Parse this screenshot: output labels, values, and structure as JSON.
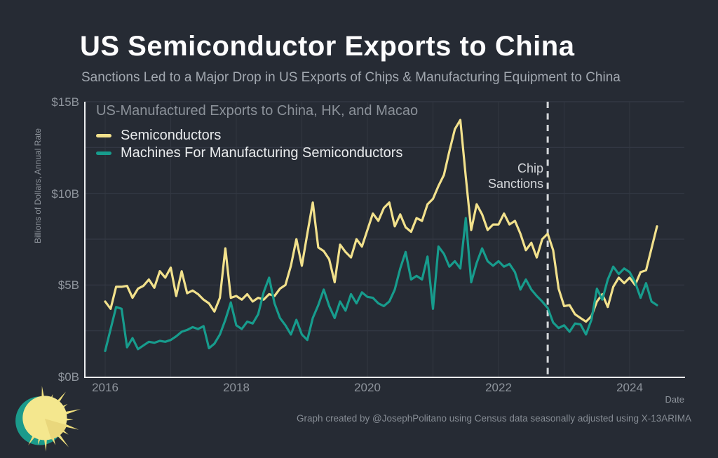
{
  "header": {
    "title": "US Semiconductor Exports to China",
    "subtitle": "Sanctions Led to a Major Drop in US Exports of Chips & Manufacturing Equipment to China"
  },
  "chart_data": {
    "type": "line",
    "inner_title": "US-Manufactured Exports to China, HK, and Macao",
    "ylabel": "Billions of Dollars, Annual Rate",
    "xlabel": "Date",
    "ylim": [
      0,
      15
    ],
    "grid": true,
    "legend_position": "top-left-inside",
    "x_unit": "month",
    "x_start": "2016-01",
    "x_end": "2024-06",
    "y_ticks": [
      {
        "label": "$0B",
        "value": 0
      },
      {
        "label": "$5B",
        "value": 5
      },
      {
        "label": "$10B",
        "value": 10
      },
      {
        "label": "$15B",
        "value": 15
      }
    ],
    "x_ticks": [
      {
        "label": "2016",
        "year_offset": 0
      },
      {
        "label": "2018",
        "year_offset": 2
      },
      {
        "label": "2020",
        "year_offset": 4
      },
      {
        "label": "2022",
        "year_offset": 6
      },
      {
        "label": "2024",
        "year_offset": 8
      }
    ],
    "series": [
      {
        "name": "Semiconductors",
        "color": "#f2e18c",
        "values": [
          4.1,
          3.7,
          4.9,
          4.9,
          4.95,
          4.3,
          4.8,
          4.95,
          5.3,
          4.85,
          5.75,
          5.4,
          5.95,
          4.4,
          5.75,
          4.55,
          4.7,
          4.5,
          4.2,
          4.0,
          3.55,
          4.3,
          7.0,
          4.3,
          4.4,
          4.2,
          4.5,
          4.1,
          4.3,
          4.2,
          4.5,
          4.4,
          4.8,
          5.0,
          6.05,
          7.5,
          6.05,
          7.8,
          9.5,
          7.05,
          6.85,
          6.4,
          5.15,
          7.2,
          6.8,
          6.5,
          7.5,
          7.1,
          8.0,
          8.9,
          8.5,
          9.2,
          9.5,
          8.2,
          8.85,
          8.15,
          7.9,
          8.65,
          8.5,
          9.4,
          9.7,
          10.4,
          11.0,
          12.3,
          13.5,
          14.0,
          10.9,
          8.0,
          9.4,
          8.85,
          8.0,
          8.3,
          8.3,
          8.9,
          8.3,
          8.5,
          7.8,
          6.9,
          7.3,
          6.5,
          7.5,
          7.8,
          6.9,
          4.8,
          3.85,
          3.9,
          3.4,
          3.2,
          3.0,
          3.3,
          4.1,
          4.5,
          3.8,
          4.9,
          5.4,
          5.1,
          5.4,
          5.0,
          5.7,
          5.8,
          7.0,
          8.2
        ]
      },
      {
        "name": "Machines For Manufacturing Semiconductors",
        "color": "#179c8d",
        "values": [
          1.4,
          2.6,
          3.8,
          3.7,
          1.6,
          2.1,
          1.5,
          1.7,
          1.9,
          1.85,
          1.95,
          1.9,
          2.0,
          2.2,
          2.45,
          2.55,
          2.7,
          2.6,
          2.75,
          1.55,
          1.8,
          2.3,
          3.1,
          4.05,
          2.8,
          2.6,
          3.0,
          2.9,
          3.4,
          4.6,
          5.4,
          4.0,
          3.2,
          2.8,
          2.3,
          3.1,
          2.3,
          2.0,
          3.2,
          3.9,
          4.75,
          3.85,
          3.2,
          4.1,
          3.6,
          4.5,
          4.0,
          4.6,
          4.35,
          4.3,
          4.0,
          3.85,
          4.1,
          4.75,
          5.9,
          6.8,
          5.3,
          5.5,
          5.3,
          6.55,
          3.7,
          7.1,
          6.7,
          6.0,
          6.3,
          5.9,
          8.65,
          5.15,
          6.2,
          7.0,
          6.3,
          6.05,
          6.3,
          6.0,
          6.15,
          5.7,
          4.75,
          5.3,
          4.75,
          4.4,
          4.1,
          3.75,
          2.95,
          2.65,
          2.8,
          2.45,
          2.9,
          2.85,
          2.3,
          3.1,
          4.8,
          4.2,
          5.3,
          6.0,
          5.6,
          5.9,
          5.7,
          5.15,
          4.3,
          5.1,
          4.1,
          3.9
        ]
      }
    ],
    "annotation": {
      "line1": "Chip",
      "line2": "Sanctions",
      "x_date": "2022-10",
      "x_index": 81,
      "line_style": "dashed",
      "color": "#d4d7da"
    }
  },
  "footer": {
    "credit": "Graph created by @JosephPolitano using Census data seasonally adjusted using X-13ARIMA"
  },
  "colors": {
    "background": "#262b34",
    "grid": "#353b46",
    "axis": "#eceef0",
    "title": "#fdfdfe",
    "subtitle": "#a2a8b0",
    "tick_text": "#8e949c",
    "semiconductors_line": "#f2e18c",
    "machines_line": "#179c8d",
    "sun_yellow": "#f4e78e",
    "sun_teal": "#1b9a8b"
  }
}
